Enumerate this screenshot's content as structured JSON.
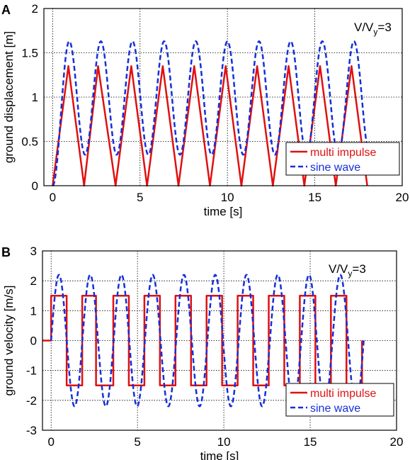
{
  "chart_data": [
    {
      "type": "line",
      "panel_label": "A",
      "ylabel": "ground displacement [m]",
      "xlabel": "time [s]",
      "annotation": {
        "main": "V/V",
        "sub": "y",
        "tail": "=3"
      },
      "xlim": [
        -0.5,
        20
      ],
      "ylim": [
        0,
        2
      ],
      "xticks": [
        "0",
        "5",
        "10",
        "15",
        "20"
      ],
      "yticks": [
        "0",
        "0.5",
        "1",
        "1.5",
        "2"
      ],
      "grid": true,
      "legend_position": "bottom-right",
      "series": [
        {
          "name": "multi impulse",
          "color": "#e01010",
          "style": "solid",
          "x": [
            0,
            0.9,
            1.8,
            2.6,
            3.6,
            4.5,
            5.4,
            6.3,
            7.2,
            8.1,
            9.0,
            9.9,
            10.8,
            11.7,
            12.6,
            13.5,
            14.4,
            15.3,
            16.2,
            17.1,
            18.0
          ],
          "y": [
            0,
            1.35,
            0,
            1.35,
            0,
            1.35,
            0,
            1.35,
            0,
            1.35,
            0,
            1.35,
            0,
            1.35,
            0,
            1.35,
            0,
            1.35,
            0,
            1.35,
            0
          ]
        },
        {
          "name": "sine wave",
          "color": "#1530d8",
          "style": "dashed",
          "start": 0,
          "first_peak": 0.95,
          "period": 1.81,
          "cycles": 10,
          "max": 1.63,
          "min": 0.35
        }
      ],
      "legend": [
        "multi impulse",
        "sine wave"
      ]
    },
    {
      "type": "line",
      "panel_label": "B",
      "ylabel": "ground velocity [m/s]",
      "xlabel": "time [s]",
      "annotation": {
        "main": "V/V",
        "sub": "y",
        "tail": "=3"
      },
      "xlim": [
        -0.5,
        20
      ],
      "ylim": [
        -3,
        3
      ],
      "xticks": [
        "0",
        "5",
        "10",
        "15",
        "20"
      ],
      "yticks": [
        "-3",
        "-2",
        "-1",
        "0",
        "1",
        "2",
        "3"
      ],
      "grid": true,
      "legend_position": "bottom-right",
      "series": [
        {
          "name": "multi impulse",
          "color": "#e01010",
          "style": "solid",
          "pre_zero_from": -0.5,
          "step_times": [
            0,
            0.9,
            1.8,
            2.6,
            3.6,
            4.5,
            5.4,
            6.3,
            7.2,
            8.1,
            9.0,
            9.9,
            10.8,
            11.7,
            12.6,
            13.5,
            14.4,
            15.3,
            16.2,
            17.1,
            18.0
          ],
          "level": 1.5,
          "end_spike": 0
        },
        {
          "name": "sine wave",
          "color": "#1530d8",
          "style": "dashed",
          "start": 0,
          "period": 1.81,
          "cycles": 10,
          "amplitude": 2.2
        }
      ],
      "legend": [
        "multi impulse",
        "sine wave"
      ]
    }
  ]
}
